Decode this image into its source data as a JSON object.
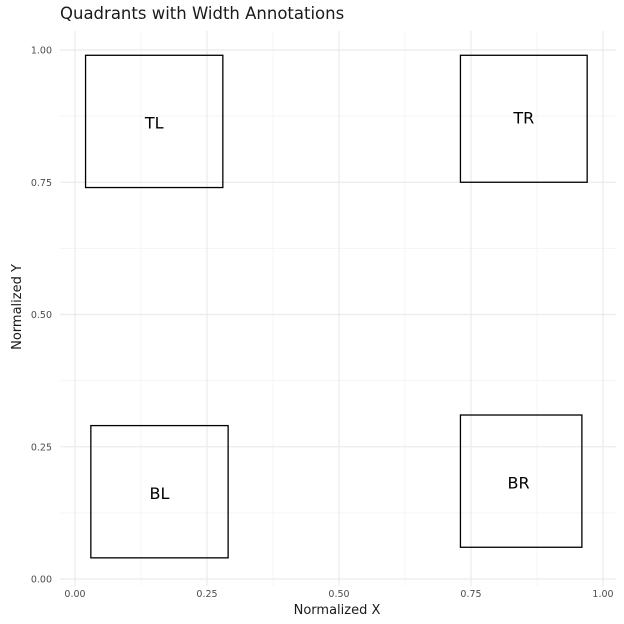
{
  "chart_data": {
    "type": "rect",
    "title": "Quadrants with Width Annotations",
    "xlabel": "Normalized X",
    "ylabel": "Normalized Y",
    "xlim": [
      0,
      1
    ],
    "ylim": [
      0,
      1
    ],
    "x_ticks": [
      {
        "value": 0.0,
        "label": "0.00"
      },
      {
        "value": 0.25,
        "label": "0.25"
      },
      {
        "value": 0.5,
        "label": "0.50"
      },
      {
        "value": 0.75,
        "label": "0.75"
      },
      {
        "value": 1.0,
        "label": "1.00"
      }
    ],
    "y_ticks": [
      {
        "value": 0.0,
        "label": "0.00"
      },
      {
        "value": 0.25,
        "label": "0.25"
      },
      {
        "value": 0.5,
        "label": "0.50"
      },
      {
        "value": 0.75,
        "label": "0.75"
      },
      {
        "value": 1.0,
        "label": "1.00"
      }
    ],
    "grid": true,
    "legend": "none",
    "boxes": [
      {
        "label": "TL",
        "xmin": 0.02,
        "xmax": 0.28,
        "ymin": 0.74,
        "ymax": 0.99,
        "label_x": 0.15,
        "label_y": 0.86
      },
      {
        "label": "TR",
        "xmin": 0.73,
        "xmax": 0.97,
        "ymin": 0.75,
        "ymax": 0.99,
        "label_x": 0.85,
        "label_y": 0.87
      },
      {
        "label": "BL",
        "xmin": 0.03,
        "xmax": 0.29,
        "ymin": 0.04,
        "ymax": 0.29,
        "label_x": 0.16,
        "label_y": 0.16
      },
      {
        "label": "BR",
        "xmin": 0.73,
        "xmax": 0.96,
        "ymin": 0.06,
        "ymax": 0.31,
        "label_x": 0.84,
        "label_y": 0.18
      }
    ],
    "colors": {
      "background": "#ffffff",
      "grid_major": "#ebebeb",
      "grid_minor": "#f5f5f5",
      "box_stroke": "#000000",
      "text": "#1a1a1a"
    }
  }
}
